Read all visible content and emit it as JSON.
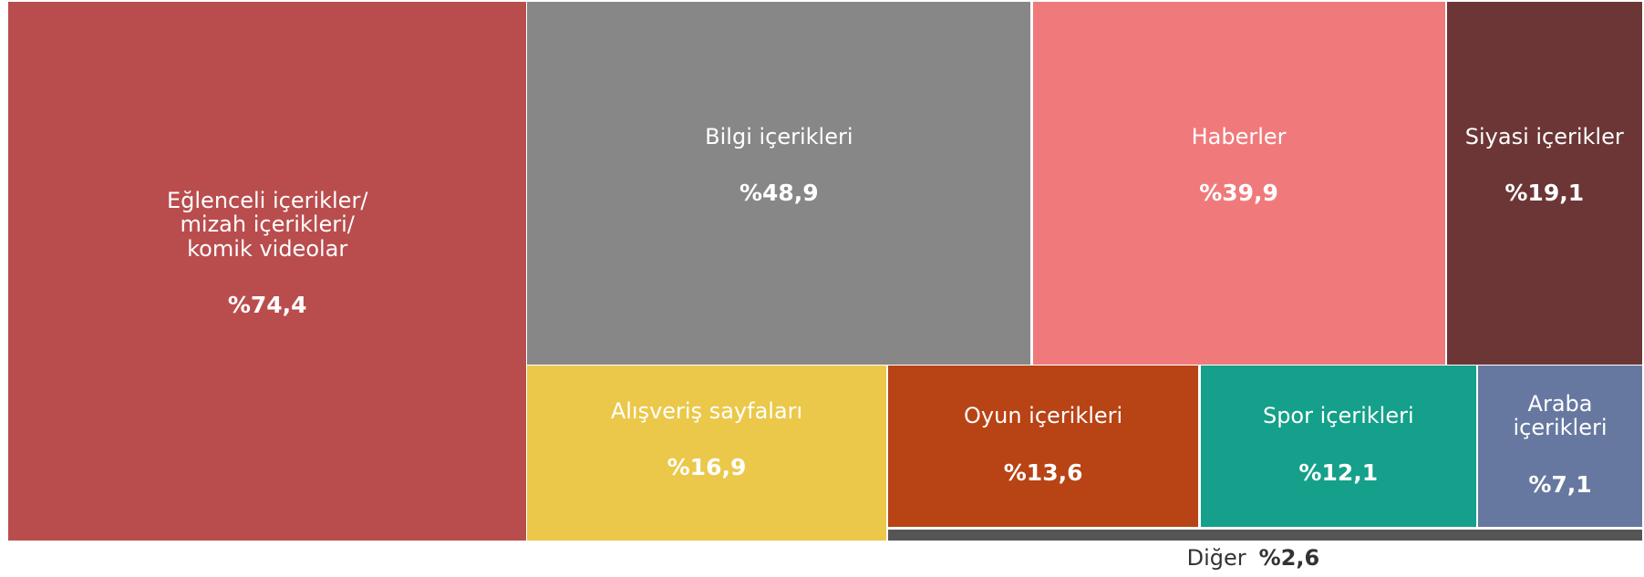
{
  "chart_data": {
    "type": "treemap",
    "categories": [
      "Eğlenceli içerikler/\nmizah içerikleri/\nkomik videolar",
      "Bilgi içerikleri",
      "Haberler",
      "Siyasi içerikler",
      "Alışveriş sayfaları",
      "Oyun içerikleri",
      "Spor içerikleri",
      "Araba\niçerikleri",
      "Diğer"
    ],
    "values": [
      74.4,
      48.9,
      39.9,
      19.1,
      16.9,
      13.6,
      12.1,
      7.1,
      2.6
    ],
    "value_labels": [
      "%74,4",
      "%48,9",
      "%39,9",
      "%19,1",
      "%16,9",
      "%13,6",
      "%12,1",
      "%7,1",
      "%2,6"
    ],
    "colors": [
      "#b94d4e",
      "#878787",
      "#f07a7b",
      "#6c3636",
      "#ebc84a",
      "#b84315",
      "#14a08a",
      "#6778a0",
      "#555555"
    ]
  }
}
